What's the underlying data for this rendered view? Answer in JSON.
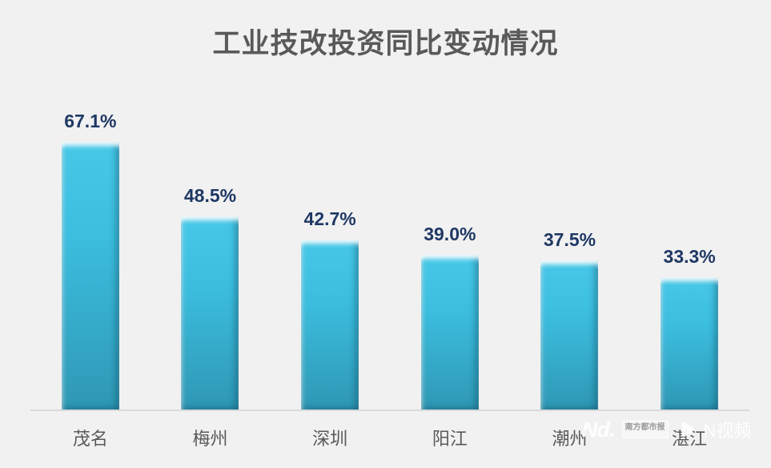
{
  "title": "工业技改投资同比变动情况",
  "chart_data": {
    "type": "bar",
    "title": "工业技改投资同比变动情况",
    "categories": [
      "茂名",
      "梅州",
      "深圳",
      "阳江",
      "潮州",
      "湛江"
    ],
    "values": [
      67.1,
      48.5,
      42.7,
      39.0,
      37.5,
      33.3
    ],
    "value_labels": [
      "67.1%",
      "48.5%",
      "42.7%",
      "39.0%",
      "37.5%",
      "33.3%"
    ],
    "xlabel": "",
    "ylabel": "",
    "ylim": [
      0,
      70
    ],
    "grid": false,
    "legend": "none",
    "value_label_color": "#1F3864",
    "category_label_color": "#595959",
    "bar_gradient_top": "#47C8E8",
    "bar_gradient_mid": "#3CBEDF",
    "bar_gradient_bottom": "#2E97B4"
  },
  "watermark": {
    "logo_text": "Nd.",
    "newspaper_name": "南方都市报",
    "newspaper_dots": "· · · · ·",
    "video_brand": "N视频",
    "play_icon": "play-icon"
  },
  "colors": {
    "background": "#F1F1F1",
    "title_color": "#595959",
    "axis_line": "#D9D9D9",
    "watermark_color": "#FFFFFF"
  }
}
